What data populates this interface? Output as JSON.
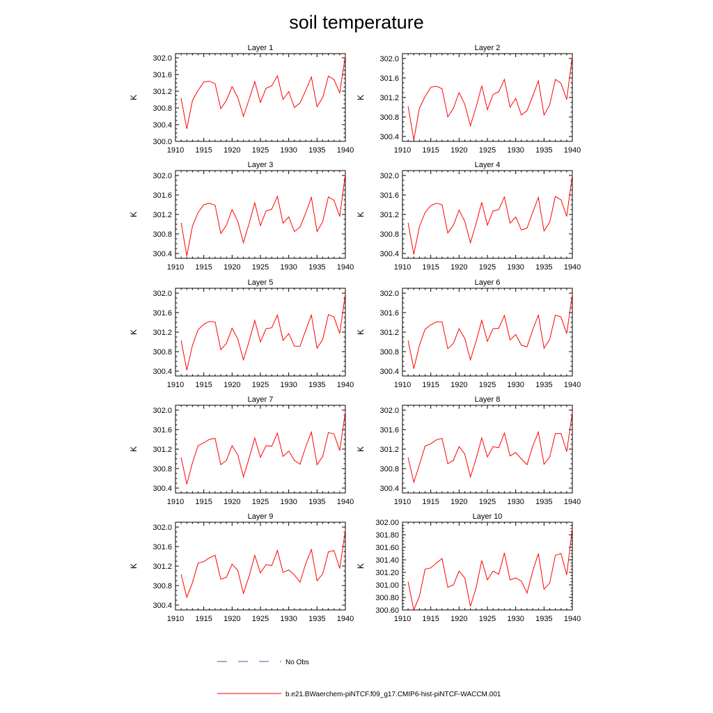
{
  "figure": {
    "title": "soil temperature",
    "legend": [
      {
        "label": "No Obs",
        "color": "#3b5ba8",
        "style": "dashed"
      },
      {
        "label": "b.e21.BWaerchem-piNTCF.f09_g17.CMIP6-hist-piNTCF-WACCM.001",
        "color": "#ff0000",
        "style": "solid"
      }
    ]
  },
  "chart_data": [
    {
      "type": "line",
      "title": "Layer 1",
      "ylabel": "K",
      "x": [
        1911,
        1912,
        1913,
        1914,
        1915,
        1916,
        1917,
        1918,
        1919,
        1920,
        1921,
        1922,
        1923,
        1924,
        1925,
        1926,
        1927,
        1928,
        1929,
        1930,
        1931,
        1932,
        1933,
        1934,
        1935,
        1936,
        1937,
        1938,
        1939,
        1940
      ],
      "xlim": [
        1910,
        1940
      ],
      "xticks": [
        "1910",
        "1915",
        "1920",
        "1925",
        "1930",
        "1935",
        "1940"
      ],
      "ylim": [
        300.0,
        302.1
      ],
      "yticks": [
        "300.0",
        "300.4",
        "300.8",
        "301.2",
        "301.6",
        "302.0"
      ],
      "series": [
        {
          "color": "#ff0000",
          "values": [
            301.03,
            300.3,
            300.98,
            301.22,
            301.42,
            301.44,
            301.38,
            300.78,
            300.98,
            301.31,
            301.05,
            300.6,
            301.0,
            301.43,
            300.93,
            301.27,
            301.33,
            301.57,
            301.0,
            301.19,
            300.81,
            300.92,
            301.22,
            301.54,
            300.83,
            301.05,
            301.56,
            301.48,
            301.16,
            302.05
          ]
        }
      ]
    },
    {
      "type": "line",
      "title": "Layer 2",
      "ylabel": "K",
      "x": [
        1911,
        1912,
        1913,
        1914,
        1915,
        1916,
        1917,
        1918,
        1919,
        1920,
        1921,
        1922,
        1923,
        1924,
        1925,
        1926,
        1927,
        1928,
        1929,
        1930,
        1931,
        1932,
        1933,
        1934,
        1935,
        1936,
        1937,
        1938,
        1939,
        1940
      ],
      "xlim": [
        1910,
        1940
      ],
      "xticks": [
        "1910",
        "1915",
        "1920",
        "1925",
        "1930",
        "1935",
        "1940"
      ],
      "ylim": [
        300.3,
        302.1
      ],
      "yticks": [
        "300.4",
        "300.8",
        "301.2",
        "301.6",
        "302.0"
      ],
      "series": [
        {
          "color": "#ff0000",
          "values": [
            301.02,
            300.33,
            300.98,
            301.22,
            301.41,
            301.43,
            301.38,
            300.8,
            300.98,
            301.3,
            301.06,
            300.62,
            301.0,
            301.44,
            300.95,
            301.26,
            301.32,
            301.57,
            301.0,
            301.18,
            300.84,
            300.93,
            301.23,
            301.54,
            300.84,
            301.05,
            301.57,
            301.49,
            301.16,
            302.05
          ]
        }
      ]
    },
    {
      "type": "line",
      "title": "Layer 3",
      "ylabel": "K",
      "x": [
        1911,
        1912,
        1913,
        1914,
        1915,
        1916,
        1917,
        1918,
        1919,
        1920,
        1921,
        1922,
        1923,
        1924,
        1925,
        1926,
        1927,
        1928,
        1929,
        1930,
        1931,
        1932,
        1933,
        1934,
        1935,
        1936,
        1937,
        1938,
        1939,
        1940
      ],
      "xlim": [
        1910,
        1940
      ],
      "xticks": [
        "1910",
        "1915",
        "1920",
        "1925",
        "1930",
        "1935",
        "1940"
      ],
      "ylim": [
        300.3,
        302.1
      ],
      "yticks": [
        "300.4",
        "300.8",
        "301.2",
        "301.6",
        "302.0"
      ],
      "series": [
        {
          "color": "#ff0000",
          "values": [
            301.03,
            300.35,
            300.96,
            301.24,
            301.4,
            301.43,
            301.39,
            300.81,
            300.98,
            301.3,
            301.06,
            300.62,
            301.01,
            301.44,
            300.97,
            301.27,
            301.31,
            301.57,
            301.02,
            301.15,
            300.85,
            300.94,
            301.23,
            301.55,
            300.85,
            301.05,
            301.56,
            301.49,
            301.16,
            302.03
          ]
        }
      ]
    },
    {
      "type": "line",
      "title": "Layer 4",
      "ylabel": "K",
      "x": [
        1911,
        1912,
        1913,
        1914,
        1915,
        1916,
        1917,
        1918,
        1919,
        1920,
        1921,
        1922,
        1923,
        1924,
        1925,
        1926,
        1927,
        1928,
        1929,
        1930,
        1931,
        1932,
        1933,
        1934,
        1935,
        1936,
        1937,
        1938,
        1939,
        1940
      ],
      "xlim": [
        1910,
        1940
      ],
      "xticks": [
        "1910",
        "1915",
        "1920",
        "1925",
        "1930",
        "1935",
        "1940"
      ],
      "ylim": [
        300.3,
        302.1
      ],
      "yticks": [
        "300.4",
        "300.8",
        "301.2",
        "301.6",
        "302.0"
      ],
      "series": [
        {
          "color": "#ff0000",
          "values": [
            301.03,
            300.38,
            300.95,
            301.24,
            301.38,
            301.43,
            301.4,
            300.82,
            300.98,
            301.29,
            301.06,
            300.62,
            301.01,
            301.45,
            300.98,
            301.27,
            301.3,
            301.56,
            301.02,
            301.15,
            300.88,
            300.92,
            301.24,
            301.55,
            300.86,
            301.04,
            301.57,
            301.5,
            301.16,
            302.01
          ]
        }
      ]
    },
    {
      "type": "line",
      "title": "Layer 5",
      "ylabel": "K",
      "x": [
        1911,
        1912,
        1913,
        1914,
        1915,
        1916,
        1917,
        1918,
        1919,
        1920,
        1921,
        1922,
        1923,
        1924,
        1925,
        1926,
        1927,
        1928,
        1929,
        1930,
        1931,
        1932,
        1933,
        1934,
        1935,
        1936,
        1937,
        1938,
        1939,
        1940
      ],
      "xlim": [
        1910,
        1940
      ],
      "xticks": [
        "1910",
        "1915",
        "1920",
        "1925",
        "1930",
        "1935",
        "1940"
      ],
      "ylim": [
        300.3,
        302.1
      ],
      "yticks": [
        "300.4",
        "300.8",
        "301.2",
        "301.6",
        "302.0"
      ],
      "series": [
        {
          "color": "#ff0000",
          "values": [
            301.03,
            300.42,
            300.93,
            301.25,
            301.36,
            301.42,
            301.41,
            300.84,
            300.97,
            301.28,
            301.06,
            300.63,
            301.01,
            301.44,
            301.0,
            301.27,
            301.29,
            301.55,
            301.03,
            301.17,
            300.91,
            300.91,
            301.24,
            301.55,
            300.87,
            301.05,
            301.56,
            301.51,
            301.17,
            301.99
          ]
        }
      ]
    },
    {
      "type": "line",
      "title": "Layer 6",
      "ylabel": "K",
      "x": [
        1911,
        1912,
        1913,
        1914,
        1915,
        1916,
        1917,
        1918,
        1919,
        1920,
        1921,
        1922,
        1923,
        1924,
        1925,
        1926,
        1927,
        1928,
        1929,
        1930,
        1931,
        1932,
        1933,
        1934,
        1935,
        1936,
        1937,
        1938,
        1939,
        1940
      ],
      "xlim": [
        1910,
        1940
      ],
      "xticks": [
        "1910",
        "1915",
        "1920",
        "1925",
        "1930",
        "1935",
        "1940"
      ],
      "ylim": [
        300.3,
        302.1
      ],
      "yticks": [
        "300.4",
        "300.8",
        "301.2",
        "301.6",
        "302.0"
      ],
      "series": [
        {
          "color": "#ff0000",
          "values": [
            301.03,
            300.45,
            300.93,
            301.26,
            301.35,
            301.41,
            301.41,
            300.86,
            300.97,
            301.27,
            301.07,
            300.63,
            301.01,
            301.44,
            301.01,
            301.27,
            301.28,
            301.54,
            301.04,
            301.15,
            300.93,
            300.9,
            301.25,
            301.55,
            300.87,
            301.05,
            301.55,
            301.51,
            301.17,
            301.98
          ]
        }
      ]
    },
    {
      "type": "line",
      "title": "Layer 7",
      "ylabel": "K",
      "x": [
        1911,
        1912,
        1913,
        1914,
        1915,
        1916,
        1917,
        1918,
        1919,
        1920,
        1921,
        1922,
        1923,
        1924,
        1925,
        1926,
        1927,
        1928,
        1929,
        1930,
        1931,
        1932,
        1933,
        1934,
        1935,
        1936,
        1937,
        1938,
        1939,
        1940
      ],
      "xlim": [
        1910,
        1940
      ],
      "xticks": [
        "1910",
        "1915",
        "1920",
        "1925",
        "1930",
        "1935",
        "1940"
      ],
      "ylim": [
        300.3,
        302.1
      ],
      "yticks": [
        "300.4",
        "300.8",
        "301.2",
        "301.6",
        "302.0"
      ],
      "series": [
        {
          "color": "#ff0000",
          "values": [
            301.03,
            300.48,
            300.92,
            301.27,
            301.33,
            301.4,
            301.42,
            300.88,
            300.97,
            301.27,
            301.08,
            300.63,
            301.01,
            301.43,
            301.03,
            301.27,
            301.26,
            301.53,
            301.05,
            301.16,
            300.97,
            300.89,
            301.25,
            301.55,
            300.88,
            301.05,
            301.54,
            301.51,
            301.17,
            301.96
          ]
        }
      ]
    },
    {
      "type": "line",
      "title": "Layer 8",
      "ylabel": "K",
      "x": [
        1911,
        1912,
        1913,
        1914,
        1915,
        1916,
        1917,
        1918,
        1919,
        1920,
        1921,
        1922,
        1923,
        1924,
        1925,
        1926,
        1927,
        1928,
        1929,
        1930,
        1931,
        1932,
        1933,
        1934,
        1935,
        1936,
        1937,
        1938,
        1939,
        1940
      ],
      "xlim": [
        1910,
        1940
      ],
      "xticks": [
        "1910",
        "1915",
        "1920",
        "1925",
        "1930",
        "1935",
        "1940"
      ],
      "ylim": [
        300.3,
        302.1
      ],
      "yticks": [
        "300.4",
        "300.8",
        "301.2",
        "301.6",
        "302.0"
      ],
      "series": [
        {
          "color": "#ff0000",
          "values": [
            301.03,
            300.52,
            300.88,
            301.26,
            301.31,
            301.39,
            301.42,
            300.9,
            300.97,
            301.25,
            301.1,
            300.63,
            301.0,
            301.43,
            301.04,
            301.25,
            301.23,
            301.53,
            301.06,
            301.13,
            301.0,
            300.88,
            301.26,
            301.55,
            300.89,
            301.04,
            301.52,
            301.52,
            301.15,
            301.95
          ]
        }
      ]
    },
    {
      "type": "line",
      "title": "Layer 9",
      "ylabel": "K",
      "x": [
        1911,
        1912,
        1913,
        1914,
        1915,
        1916,
        1917,
        1918,
        1919,
        1920,
        1921,
        1922,
        1923,
        1924,
        1925,
        1926,
        1927,
        1928,
        1929,
        1930,
        1931,
        1932,
        1933,
        1934,
        1935,
        1936,
        1937,
        1938,
        1939,
        1940
      ],
      "xlim": [
        1910,
        1940
      ],
      "xticks": [
        "1910",
        "1915",
        "1920",
        "1925",
        "1930",
        "1935",
        "1940"
      ],
      "ylim": [
        300.3,
        302.1
      ],
      "yticks": [
        "300.4",
        "300.8",
        "301.2",
        "301.6",
        "302.0"
      ],
      "series": [
        {
          "color": "#ff0000",
          "values": [
            301.03,
            300.56,
            300.86,
            301.26,
            301.29,
            301.37,
            301.42,
            300.93,
            300.97,
            301.24,
            301.11,
            300.64,
            300.99,
            301.42,
            301.06,
            301.23,
            301.21,
            301.52,
            301.07,
            301.12,
            301.02,
            300.87,
            301.25,
            301.54,
            300.9,
            301.04,
            301.49,
            301.52,
            301.15,
            301.94
          ]
        }
      ]
    },
    {
      "type": "line",
      "title": "Layer 10",
      "ylabel": "K",
      "x": [
        1911,
        1912,
        1913,
        1914,
        1915,
        1916,
        1917,
        1918,
        1919,
        1920,
        1921,
        1922,
        1923,
        1924,
        1925,
        1926,
        1927,
        1928,
        1929,
        1930,
        1931,
        1932,
        1933,
        1934,
        1935,
        1936,
        1937,
        1938,
        1939,
        1940
      ],
      "xlim": [
        1910,
        1940
      ],
      "xticks": [
        "1910",
        "1915",
        "1920",
        "1925",
        "1930",
        "1935",
        "1940"
      ],
      "ylim": [
        300.6,
        302.0
      ],
      "yticks": [
        "300.60",
        "300.80",
        "301.00",
        "301.20",
        "301.40",
        "301.60",
        "301.80",
        "302.00"
      ],
      "series": [
        {
          "color": "#ff0000",
          "values": [
            301.05,
            300.6,
            300.82,
            301.25,
            301.27,
            301.35,
            301.42,
            300.96,
            301.0,
            301.22,
            301.11,
            300.66,
            300.95,
            301.39,
            301.08,
            301.22,
            301.17,
            301.51,
            301.08,
            301.11,
            301.06,
            300.87,
            301.22,
            301.5,
            300.93,
            301.03,
            301.47,
            301.5,
            301.16,
            301.9
          ]
        }
      ]
    }
  ]
}
